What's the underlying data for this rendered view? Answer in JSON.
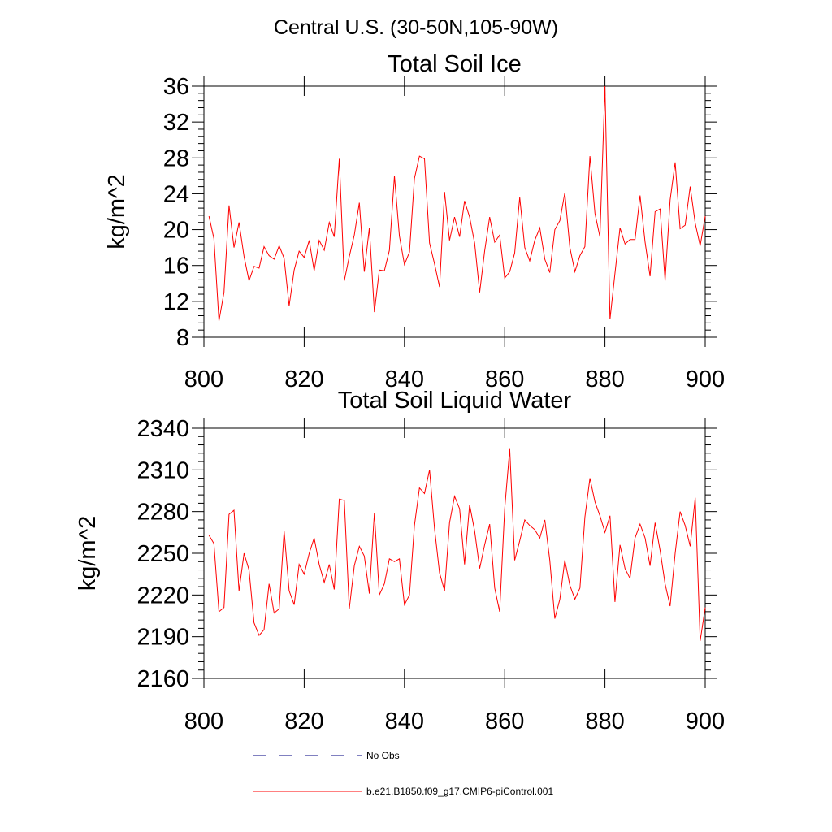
{
  "suptitle": "Central U.S. (30-50N,105-90W)",
  "colors": {
    "model": "#ff0000",
    "obs": "#000080"
  },
  "legend": [
    {
      "label": "No Obs",
      "style": "dashed",
      "color": "#000080"
    },
    {
      "label": "b.e21.B1850.f09_g17.CMIP6-piControl.001",
      "style": "solid",
      "color": "#ff0000"
    }
  ],
  "chart_data": [
    {
      "type": "line",
      "title": "Total Soil Ice",
      "ylabel": "kg/m^2",
      "xlim": [
        800,
        900
      ],
      "ylim": [
        8,
        36
      ],
      "xticks": [
        800,
        820,
        840,
        860,
        880,
        900
      ],
      "yticks": [
        8,
        12,
        16,
        20,
        24,
        28,
        32,
        36
      ],
      "series": [
        {
          "name": "b.e21.B1850.f09_g17.CMIP6-piControl.001",
          "x_start": 801,
          "values": [
            21.5,
            19.0,
            9.8,
            13.0,
            22.7,
            18.0,
            20.8,
            17.0,
            14.3,
            15.9,
            15.7,
            18.1,
            17.1,
            16.7,
            18.2,
            16.8,
            11.5,
            15.5,
            17.6,
            16.9,
            18.8,
            15.4,
            18.8,
            17.7,
            20.8,
            19.2,
            27.9,
            14.3,
            17.0,
            19.4,
            23.0,
            15.3,
            20.2,
            10.8,
            15.5,
            15.4,
            17.7,
            26.0,
            19.3,
            16.1,
            17.5,
            25.7,
            28.2,
            27.9,
            18.5,
            16.2,
            13.6,
            24.2,
            18.8,
            21.4,
            19.2,
            23.2,
            21.4,
            18.5,
            13.0,
            17.6,
            21.4,
            18.6,
            19.4,
            14.6,
            15.3,
            17.4,
            23.6,
            18.0,
            16.5,
            18.8,
            20.2,
            16.7,
            15.2,
            20.0,
            21.0,
            24.1,
            18.0,
            15.3,
            17.1,
            18.1,
            28.2,
            21.8,
            19.2,
            36.0,
            10.0,
            15.1,
            20.2,
            18.4,
            18.9,
            18.9,
            23.8,
            18.6,
            14.8,
            22.0,
            22.3,
            14.3,
            23.3,
            27.5,
            20.1,
            20.5,
            24.8,
            20.7,
            18.2,
            21.5
          ]
        }
      ]
    },
    {
      "type": "line",
      "title": "Total Soil Liquid Water",
      "ylabel": "kg/m^2",
      "xlim": [
        800,
        900
      ],
      "ylim": [
        2160,
        2340
      ],
      "xticks": [
        800,
        820,
        840,
        860,
        880,
        900
      ],
      "yticks": [
        2160,
        2190,
        2220,
        2250,
        2280,
        2310,
        2340
      ],
      "series": [
        {
          "name": "b.e21.B1850.f09_g17.CMIP6-piControl.001",
          "x_start": 801,
          "values": [
            2263,
            2257,
            2208,
            2211,
            2278,
            2281,
            2223,
            2250,
            2238,
            2200,
            2191,
            2195,
            2228,
            2207,
            2210,
            2266,
            2223,
            2213,
            2242,
            2235,
            2250,
            2261,
            2242,
            2229,
            2242,
            2224,
            2289,
            2288,
            2210,
            2241,
            2255,
            2248,
            2221,
            2279,
            2220,
            2228,
            2246,
            2244,
            2246,
            2213,
            2220,
            2270,
            2297,
            2293,
            2310,
            2268,
            2236,
            2223,
            2272,
            2291,
            2282,
            2242,
            2285,
            2266,
            2239,
            2256,
            2271,
            2225,
            2208,
            2282,
            2325,
            2245,
            2259,
            2274,
            2270,
            2267,
            2261,
            2274,
            2245,
            2203,
            2217,
            2245,
            2227,
            2217,
            2225,
            2276,
            2304,
            2287,
            2277,
            2265,
            2277,
            2215,
            2256,
            2239,
            2232,
            2261,
            2271,
            2261,
            2241,
            2272,
            2252,
            2228,
            2212,
            2250,
            2280,
            2270,
            2255,
            2290,
            2187,
            2211
          ]
        }
      ]
    }
  ]
}
